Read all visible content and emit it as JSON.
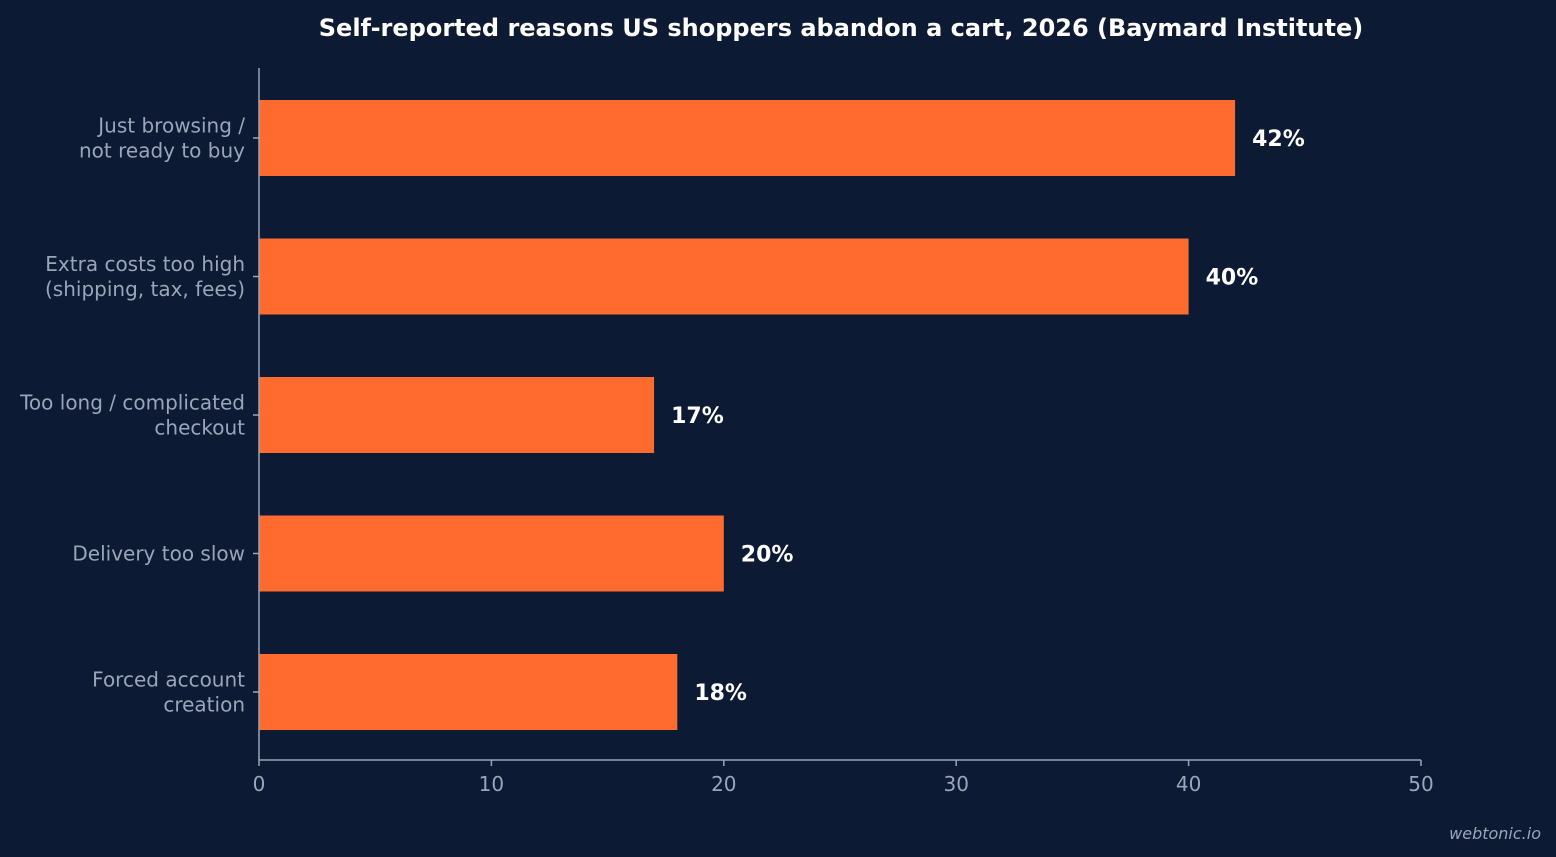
{
  "chart_data": {
    "type": "bar",
    "orientation": "horizontal",
    "title": "Self-reported reasons US shoppers abandon a cart, 2026 (Baymard Institute)",
    "categories": [
      [
        "Just browsing /",
        "not ready to buy"
      ],
      [
        "Extra costs too high",
        "(shipping, tax, fees)"
      ],
      [
        "Too long / complicated",
        "checkout"
      ],
      [
        "Delivery too slow"
      ],
      [
        "Forced account",
        "creation"
      ]
    ],
    "values": [
      42,
      40,
      17,
      20,
      18
    ],
    "value_labels": [
      "42%",
      "40%",
      "17%",
      "20%",
      "18%"
    ],
    "xlim": [
      0,
      50
    ],
    "xticks": [
      0,
      10,
      20,
      30,
      40,
      50
    ],
    "xtick_labels": [
      "0",
      "10",
      "20",
      "30",
      "40",
      "50"
    ],
    "xlabel": "",
    "ylabel": "",
    "grid": false,
    "bar_color": "#ff6b2f",
    "background_color": "#0c1a33"
  },
  "watermark": "webtonic.io"
}
